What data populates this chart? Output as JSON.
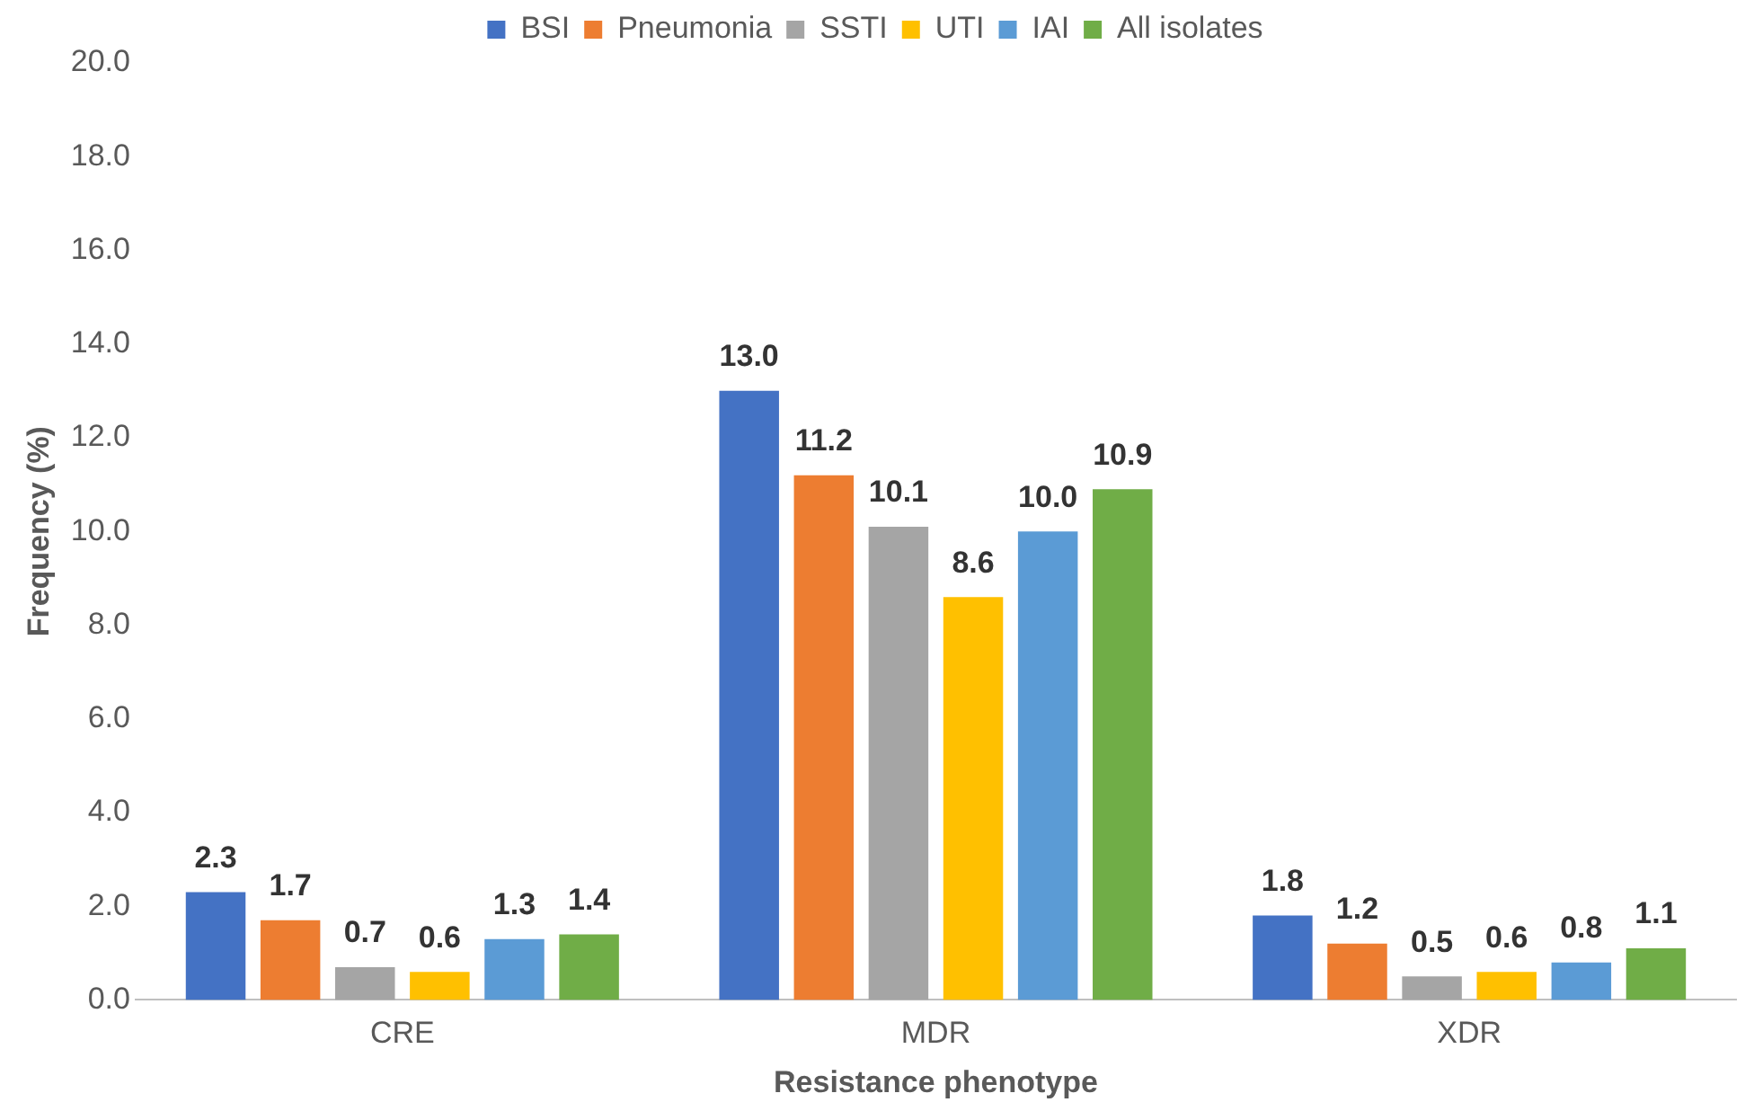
{
  "chart_data": {
    "type": "bar",
    "xlabel": "Resistance phenotype",
    "ylabel": "Frequency (%)",
    "categories": [
      "CRE",
      "MDR",
      "XDR"
    ],
    "series": [
      {
        "name": "BSI",
        "color": "#4472c4",
        "values": [
          2.3,
          13.0,
          1.8
        ],
        "value_labels": [
          "2.3",
          "13.0",
          "1.8"
        ]
      },
      {
        "name": "Pneumonia",
        "color": "#ed7d31",
        "values": [
          1.7,
          11.2,
          1.2
        ],
        "value_labels": [
          "1.7",
          "11.2",
          "1.2"
        ]
      },
      {
        "name": "SSTI",
        "color": "#a5a5a5",
        "values": [
          0.7,
          10.1,
          0.5
        ],
        "value_labels": [
          "0.7",
          "10.1",
          "0.5"
        ]
      },
      {
        "name": "UTI",
        "color": "#ffc000",
        "values": [
          0.6,
          8.6,
          0.6
        ],
        "value_labels": [
          "0.6",
          "8.6",
          "0.6"
        ]
      },
      {
        "name": "IAI",
        "color": "#5b9bd5",
        "values": [
          1.3,
          10.0,
          0.8
        ],
        "value_labels": [
          "1.3",
          "10.0",
          "0.8"
        ]
      },
      {
        "name": "All isolates",
        "color": "#70ad47",
        "values": [
          1.4,
          10.9,
          1.1
        ],
        "value_labels": [
          "1.4",
          "10.9",
          "1.1"
        ]
      }
    ],
    "ylim": [
      0,
      20
    ],
    "yticks": [
      {
        "value": 0,
        "label": "0.0"
      },
      {
        "value": 2,
        "label": "2.0"
      },
      {
        "value": 4,
        "label": "4.0"
      },
      {
        "value": 6,
        "label": "6.0"
      },
      {
        "value": 8,
        "label": "8.0"
      },
      {
        "value": 10,
        "label": "10.0"
      },
      {
        "value": 12,
        "label": "12.0"
      },
      {
        "value": 14,
        "label": "14.0"
      },
      {
        "value": 16,
        "label": "16.0"
      },
      {
        "value": 18,
        "label": "18.0"
      },
      {
        "value": 20,
        "label": "20.0"
      }
    ],
    "grid": false,
    "legend": "top"
  }
}
